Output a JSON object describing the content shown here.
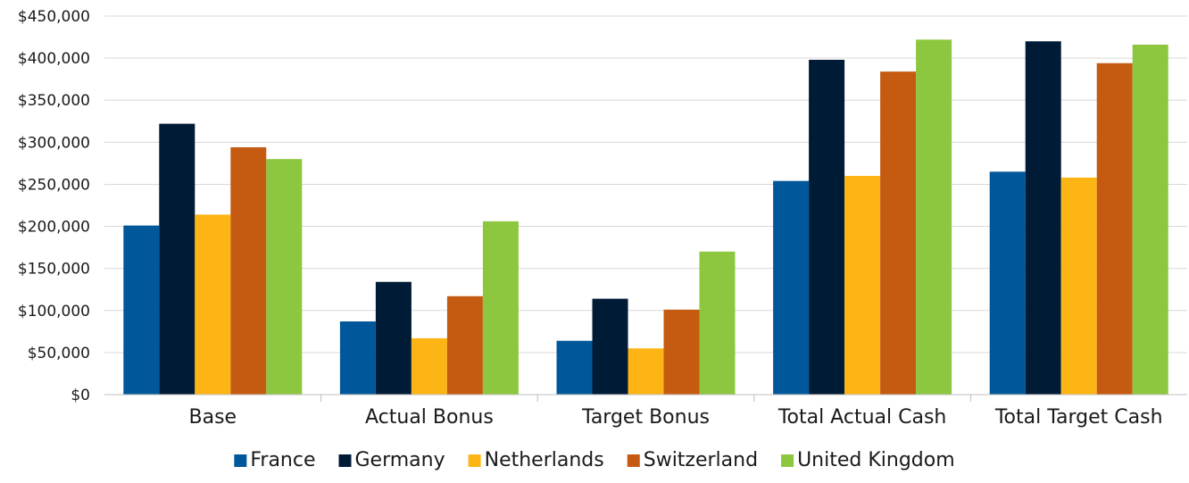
{
  "chart_data": {
    "type": "bar",
    "title": "",
    "xlabel": "",
    "ylabel": "",
    "categories": [
      "Base",
      "Actual Bonus",
      "Target Bonus",
      "Total Actual Cash",
      "Total Target Cash"
    ],
    "series": [
      {
        "name": "France",
        "color": "#00589a",
        "values": [
          201000,
          87000,
          64000,
          254000,
          265000
        ]
      },
      {
        "name": "Germany",
        "color": "#001b36",
        "values": [
          322000,
          134000,
          114000,
          398000,
          420000
        ]
      },
      {
        "name": "Netherlands",
        "color": "#fdb515",
        "values": [
          214000,
          67000,
          55000,
          260000,
          258000
        ]
      },
      {
        "name": "Switzerland",
        "color": "#c55a11",
        "values": [
          294000,
          117000,
          101000,
          384000,
          394000
        ]
      },
      {
        "name": "United Kingdom",
        "color": "#8dc63f",
        "values": [
          280000,
          206000,
          170000,
          422000,
          416000
        ]
      }
    ],
    "ylim": [
      0,
      450000
    ],
    "yticks": [
      0,
      50000,
      100000,
      150000,
      200000,
      250000,
      300000,
      350000,
      400000,
      450000
    ],
    "ytick_labels": [
      "$0",
      "$50,000",
      "$100,000",
      "$150,000",
      "$200,000",
      "$250,000",
      "$300,000",
      "$350,000",
      "$400,000",
      "$450,000"
    ],
    "grid": true,
    "legend_position": "bottom"
  }
}
